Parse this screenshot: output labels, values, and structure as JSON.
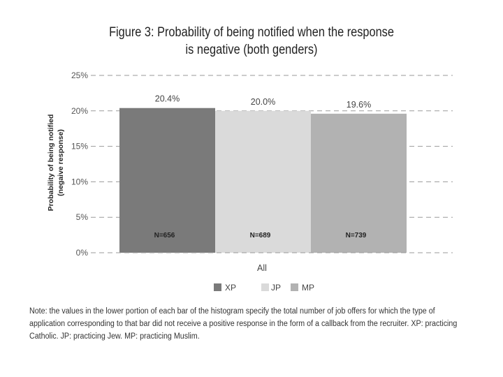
{
  "title_line1": "Figure 3: Probability of being notified when the response",
  "title_line2": "is negative (both genders)",
  "chart_data": {
    "type": "bar",
    "categories": [
      "All"
    ],
    "series": [
      {
        "name": "XP",
        "values": [
          20.4
        ],
        "label": "20.4%",
        "n_label": "N=656",
        "color": "#7a7a7a"
      },
      {
        "name": "JP",
        "values": [
          20.0
        ],
        "label": "20.0%",
        "n_label": "N=689",
        "color": "#dadada"
      },
      {
        "name": "MP",
        "values": [
          19.6
        ],
        "label": "19.6%",
        "n_label": "N=739",
        "color": "#b2b2b2"
      }
    ],
    "ylabel_line1": "Probability of being notified",
    "ylabel_line2": "(negaive response)",
    "xlabel": "All",
    "yticks": [
      0,
      5,
      10,
      15,
      20,
      25
    ],
    "ytick_labels": [
      "0%",
      "5%",
      "10%",
      "15%",
      "20%",
      "25%"
    ],
    "ylim": [
      0,
      25
    ],
    "grid": "dashed",
    "legend": "bottom"
  },
  "note": "Note: the values in the lower portion of each bar of the histogram specify the total number of job offers for which the type of application corresponding to that bar did not receive a positive response in the form of a callback from the recruiter. XP: practicing Catholic. JP: practicing Jew. MP: practicing Muslim."
}
